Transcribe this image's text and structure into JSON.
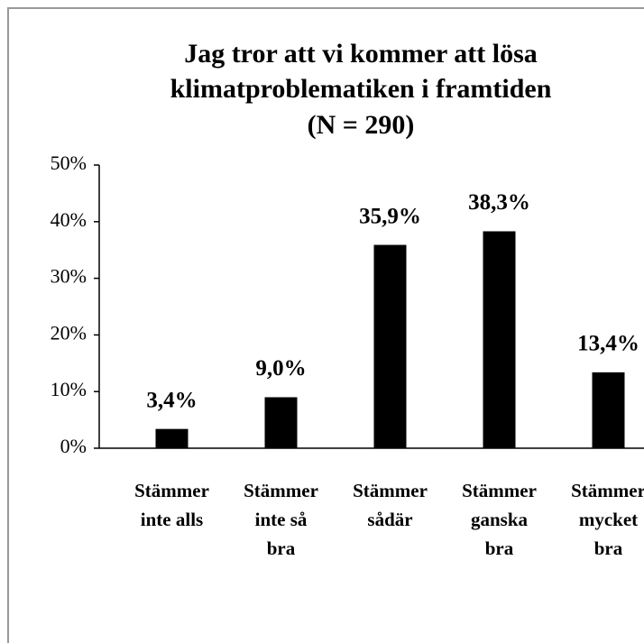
{
  "chart_data": {
    "type": "bar",
    "title": [
      "Jag tror att vi kommer att lösa",
      "klimatproblematiken i framtiden"
    ],
    "subtitle": "(N = 290)",
    "categories": [
      [
        "Stämmer",
        "inte alls"
      ],
      [
        "Stämmer",
        "inte så",
        "bra"
      ],
      [
        "Stämmer",
        "sådär"
      ],
      [
        "Stämmer",
        "ganska",
        "bra"
      ],
      [
        "Stämmer",
        "mycket",
        "bra"
      ]
    ],
    "values": [
      3.4,
      9.0,
      35.9,
      38.3,
      13.4
    ],
    "value_labels": [
      "3,4%",
      "9,0%",
      "35,9%",
      "38,3%",
      "13,4%"
    ],
    "color": "#000000",
    "ylim": [
      0,
      50
    ],
    "yticks": [
      {
        "value": 0,
        "label": "0%"
      },
      {
        "value": 10,
        "label": "10%"
      },
      {
        "value": 20,
        "label": "20%"
      },
      {
        "value": 30,
        "label": "30%"
      },
      {
        "value": 40,
        "label": "40%"
      },
      {
        "value": 50,
        "label": "50%"
      }
    ],
    "grid": false
  }
}
